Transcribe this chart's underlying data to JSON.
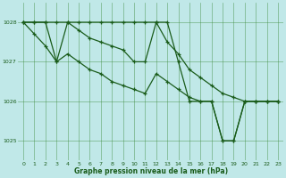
{
  "bg_color": "#c0e8e8",
  "grid_color": "#3d8b3d",
  "line_color": "#1a5c1a",
  "marker": "+",
  "title": "Graphe pression niveau de la mer (hPa)",
  "xlim": [
    -0.5,
    23.5
  ],
  "ylim": [
    1024.5,
    1028.5
  ],
  "yticks": [
    1025,
    1026,
    1027,
    1028
  ],
  "xtick_labels": [
    "0",
    "1",
    "2",
    "3",
    "4",
    "5",
    "6",
    "7",
    "8",
    "9",
    "10",
    "11",
    "12",
    "13",
    "14",
    "15",
    "16",
    "17",
    "18",
    "19",
    "20",
    "21",
    "22",
    "23"
  ],
  "xticks": [
    0,
    1,
    2,
    3,
    4,
    5,
    6,
    7,
    8,
    9,
    10,
    11,
    12,
    13,
    14,
    15,
    16,
    17,
    18,
    19,
    20,
    21,
    22,
    23
  ],
  "series": [
    [
      1028.0,
      1028.0,
      1028.0,
      1028.0,
      1028.0,
      1028.0,
      1028.0,
      1028.0,
      1028.0,
      1028.0,
      1028.0,
      1028.0,
      1028.0,
      1027.5,
      1027.2,
      1026.8,
      1026.6,
      1026.4,
      1026.2,
      1026.1,
      1026.0,
      1026.0,
      1026.0,
      1026.0
    ],
    [
      1028.0,
      1028.0,
      1028.0,
      1027.0,
      1028.0,
      1027.8,
      1027.6,
      1027.5,
      1027.4,
      1027.3,
      1027.0,
      1027.0,
      1028.0,
      1028.0,
      1027.0,
      1026.0,
      1026.0,
      1026.0,
      1025.0,
      1025.0,
      1026.0,
      1026.0,
      1026.0,
      1026.0
    ],
    [
      1028.0,
      1027.7,
      1027.4,
      1027.0,
      1027.2,
      1027.0,
      1026.8,
      1026.7,
      1026.5,
      1026.4,
      1026.3,
      1026.2,
      1026.7,
      1026.5,
      1026.3,
      1026.1,
      1026.0,
      1026.0,
      1025.0,
      1025.0,
      1026.0,
      1026.0,
      1026.0,
      1026.0
    ]
  ]
}
